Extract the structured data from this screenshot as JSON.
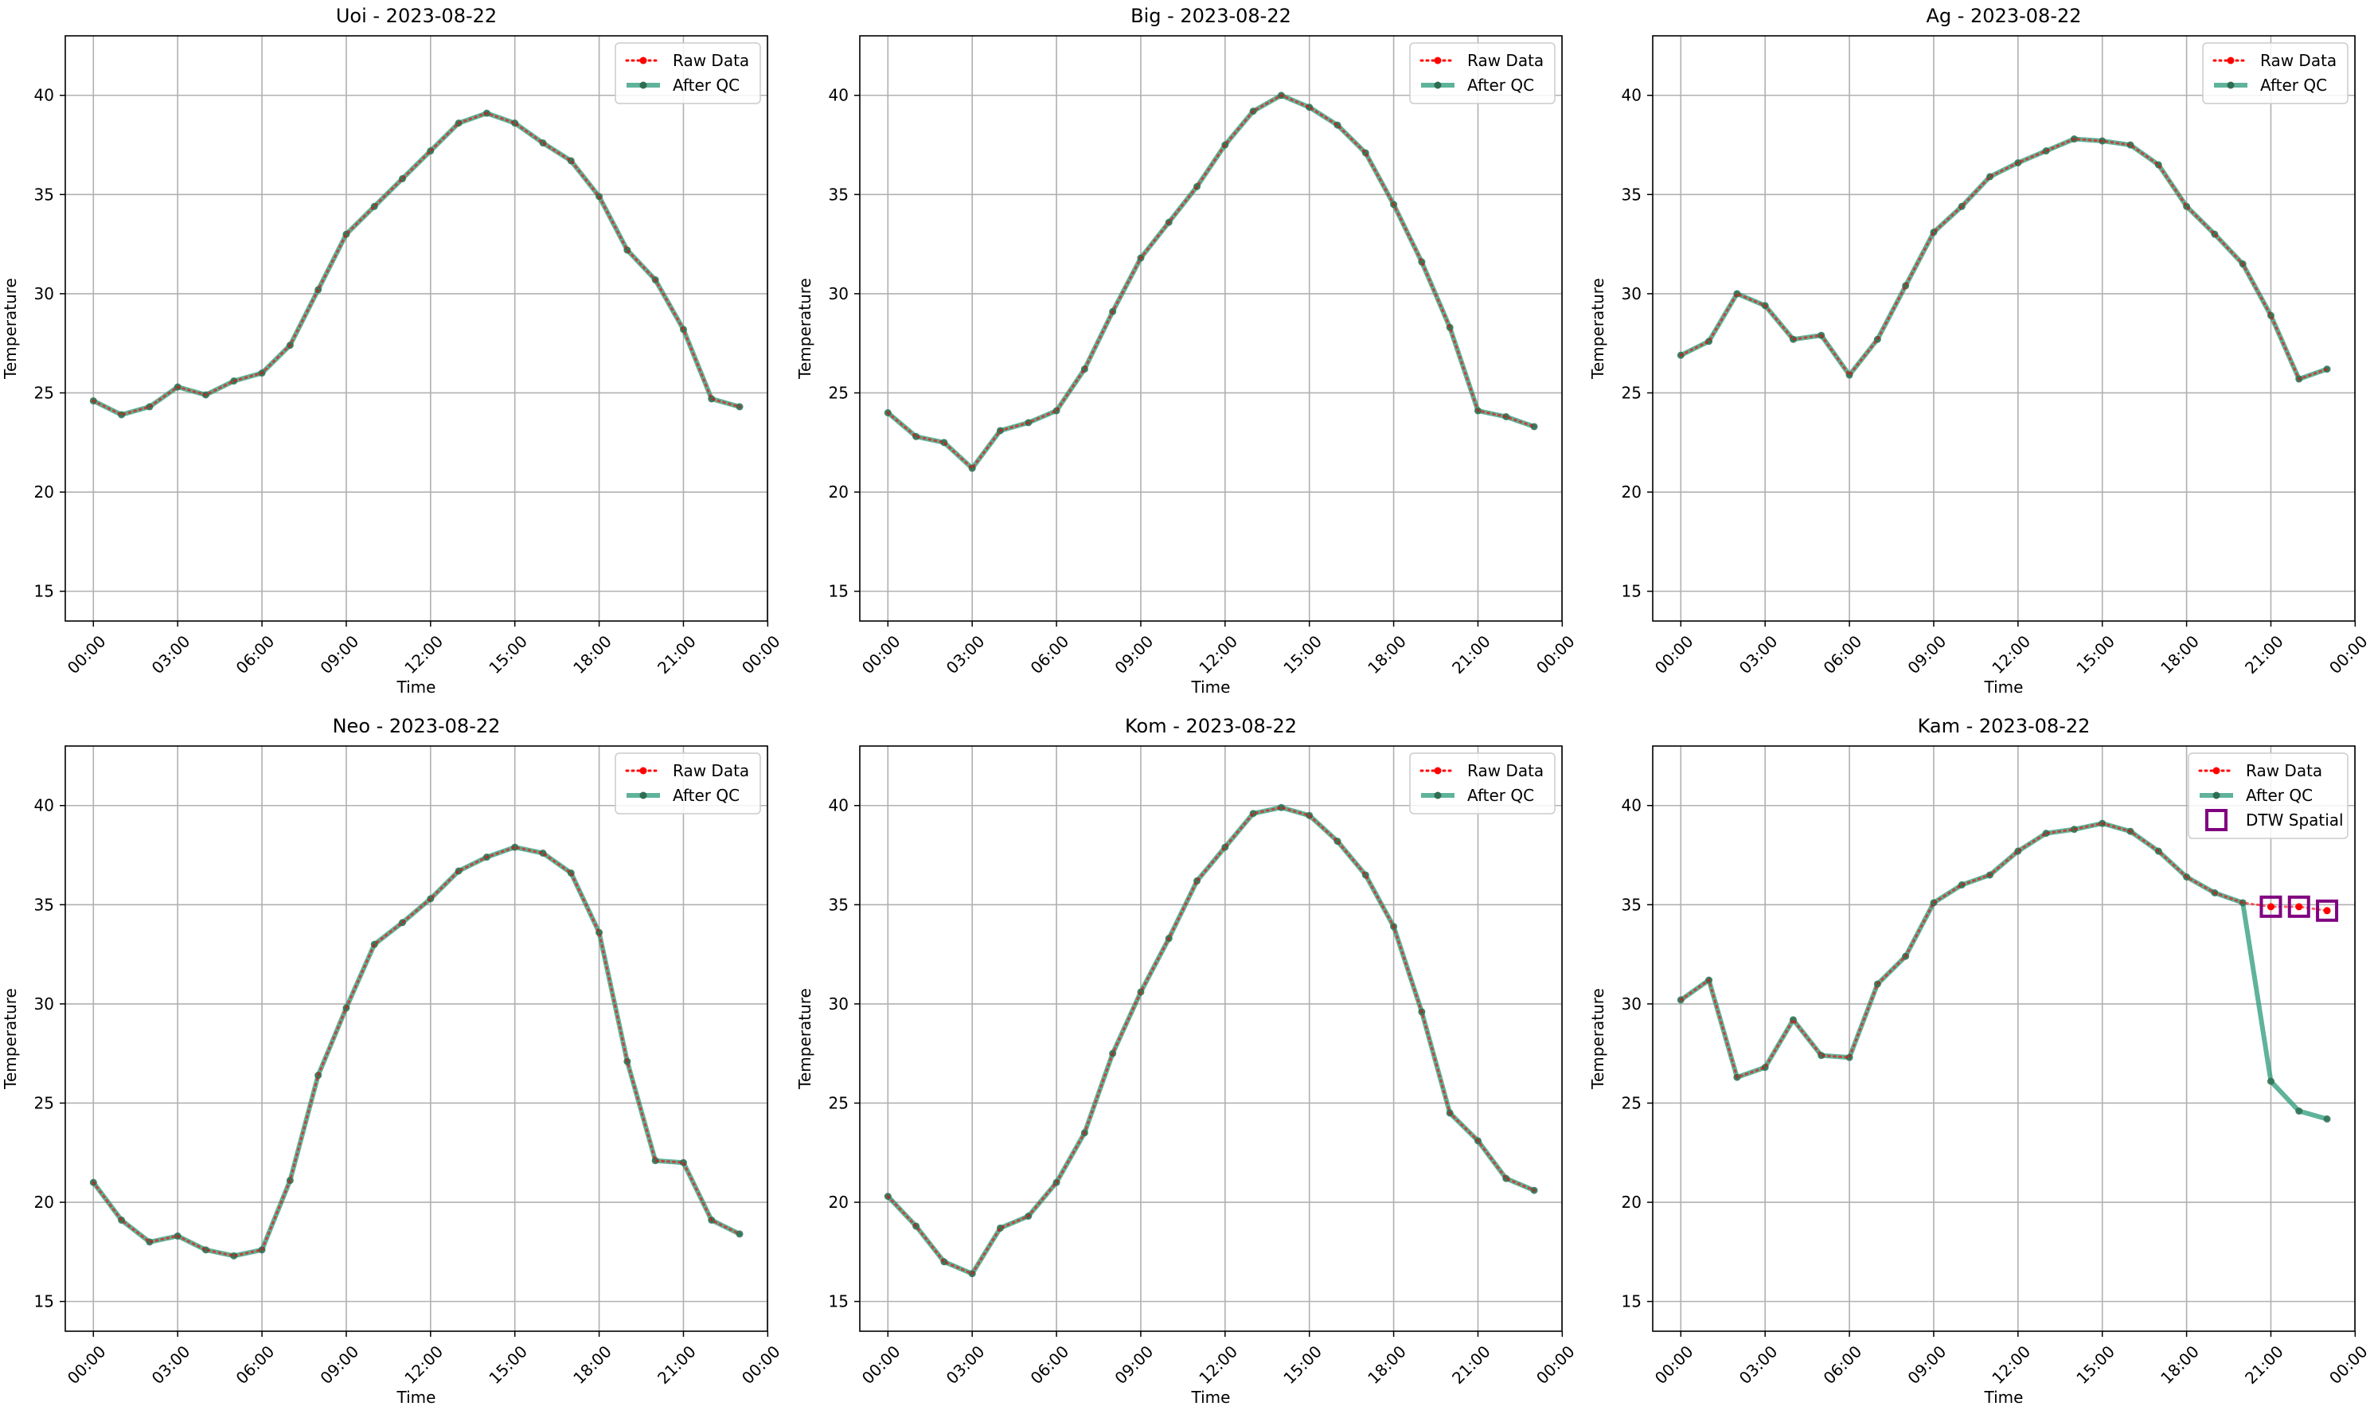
{
  "colors": {
    "raw": "#ff0000",
    "qc": "#2a9a78",
    "qc_marker": "#2f6e52",
    "flag": "#800080",
    "grid": "#b0b0b0",
    "axis": "#000000"
  },
  "chart_data": [
    {
      "type": "line",
      "title": "Uoi - 2023-08-22",
      "xlabel": "Time",
      "ylabel": "Temperature",
      "xlim": [
        -1,
        23.99
      ],
      "ylim": [
        13.5,
        43
      ],
      "x_ticks": [
        0,
        3,
        6,
        9,
        12,
        15,
        18,
        21,
        24
      ],
      "x_tick_labels": [
        "00:00",
        "03:00",
        "06:00",
        "09:00",
        "12:00",
        "15:00",
        "18:00",
        "21:00",
        "00:00"
      ],
      "y_ticks": [
        15,
        20,
        25,
        30,
        35,
        40
      ],
      "grid": true,
      "legend_position": "top-right",
      "legend": [
        "Raw Data",
        "After QC"
      ],
      "x": [
        0,
        1,
        2,
        3,
        4,
        5,
        6,
        7,
        8,
        9,
        10,
        11,
        12,
        13,
        14,
        15,
        16,
        17,
        18,
        19,
        20,
        21,
        22,
        23
      ],
      "series": [
        {
          "name": "Raw Data",
          "style": "dotted",
          "values": [
            24.6,
            23.9,
            24.3,
            25.3,
            24.9,
            25.6,
            26.0,
            27.4,
            30.2,
            33.0,
            34.4,
            35.8,
            37.2,
            38.6,
            39.1,
            38.6,
            37.6,
            36.7,
            34.9,
            32.2,
            30.7,
            28.2,
            24.7,
            24.3
          ]
        },
        {
          "name": "After QC",
          "style": "solid",
          "values": [
            24.6,
            23.9,
            24.3,
            25.3,
            24.9,
            25.6,
            26.0,
            27.4,
            30.2,
            33.0,
            34.4,
            35.8,
            37.2,
            38.6,
            39.1,
            38.6,
            37.6,
            36.7,
            34.9,
            32.2,
            30.7,
            28.2,
            24.7,
            24.3
          ]
        }
      ]
    },
    {
      "type": "line",
      "title": "Big - 2023-08-22",
      "xlabel": "Time",
      "ylabel": "Temperature",
      "xlim": [
        -1,
        23.99
      ],
      "ylim": [
        13.5,
        43
      ],
      "x_ticks": [
        0,
        3,
        6,
        9,
        12,
        15,
        18,
        21,
        24
      ],
      "x_tick_labels": [
        "00:00",
        "03:00",
        "06:00",
        "09:00",
        "12:00",
        "15:00",
        "18:00",
        "21:00",
        "00:00"
      ],
      "y_ticks": [
        15,
        20,
        25,
        30,
        35,
        40
      ],
      "grid": true,
      "legend_position": "top-right",
      "legend": [
        "Raw Data",
        "After QC"
      ],
      "x": [
        0,
        1,
        2,
        3,
        4,
        5,
        6,
        7,
        8,
        9,
        10,
        11,
        12,
        13,
        14,
        15,
        16,
        17,
        18,
        19,
        20,
        21,
        22,
        23
      ],
      "series": [
        {
          "name": "Raw Data",
          "style": "dotted",
          "values": [
            24.0,
            22.8,
            22.5,
            21.2,
            23.1,
            23.5,
            24.1,
            26.2,
            29.1,
            31.8,
            33.6,
            35.4,
            37.5,
            39.2,
            40.0,
            39.4,
            38.5,
            37.1,
            34.5,
            31.6,
            28.3,
            24.1,
            23.8,
            23.3
          ]
        },
        {
          "name": "After QC",
          "style": "solid",
          "values": [
            24.0,
            22.8,
            22.5,
            21.2,
            23.1,
            23.5,
            24.1,
            26.2,
            29.1,
            31.8,
            33.6,
            35.4,
            37.5,
            39.2,
            40.0,
            39.4,
            38.5,
            37.1,
            34.5,
            31.6,
            28.3,
            24.1,
            23.8,
            23.3
          ]
        }
      ]
    },
    {
      "type": "line",
      "title": "Ag - 2023-08-22",
      "xlabel": "Time",
      "ylabel": "Temperature",
      "xlim": [
        -1,
        23.99
      ],
      "ylim": [
        13.5,
        43
      ],
      "x_ticks": [
        0,
        3,
        6,
        9,
        12,
        15,
        18,
        21,
        24
      ],
      "x_tick_labels": [
        "00:00",
        "03:00",
        "06:00",
        "09:00",
        "12:00",
        "15:00",
        "18:00",
        "21:00",
        "00:00"
      ],
      "y_ticks": [
        15,
        20,
        25,
        30,
        35,
        40
      ],
      "grid": true,
      "legend_position": "top-right",
      "legend": [
        "Raw Data",
        "After QC"
      ],
      "x": [
        0,
        1,
        2,
        3,
        4,
        5,
        6,
        7,
        8,
        9,
        10,
        11,
        12,
        13,
        14,
        15,
        16,
        17,
        18,
        19,
        20,
        21,
        22,
        23
      ],
      "series": [
        {
          "name": "Raw Data",
          "style": "dotted",
          "values": [
            26.9,
            27.6,
            30.0,
            29.4,
            27.7,
            27.9,
            25.9,
            27.7,
            30.4,
            33.1,
            34.4,
            35.9,
            36.6,
            37.2,
            37.8,
            37.7,
            37.5,
            36.5,
            34.4,
            33.0,
            31.5,
            28.9,
            25.7,
            26.2
          ]
        },
        {
          "name": "After QC",
          "style": "solid",
          "values": [
            26.9,
            27.6,
            30.0,
            29.4,
            27.7,
            27.9,
            25.9,
            27.7,
            30.4,
            33.1,
            34.4,
            35.9,
            36.6,
            37.2,
            37.8,
            37.7,
            37.5,
            36.5,
            34.4,
            33.0,
            31.5,
            28.9,
            25.7,
            26.2
          ]
        }
      ]
    },
    {
      "type": "line",
      "title": "Neo - 2023-08-22",
      "xlabel": "Time",
      "ylabel": "Temperature",
      "xlim": [
        -1,
        23.99
      ],
      "ylim": [
        13.5,
        43
      ],
      "x_ticks": [
        0,
        3,
        6,
        9,
        12,
        15,
        18,
        21,
        24
      ],
      "x_tick_labels": [
        "00:00",
        "03:00",
        "06:00",
        "09:00",
        "12:00",
        "15:00",
        "18:00",
        "21:00",
        "00:00"
      ],
      "y_ticks": [
        15,
        20,
        25,
        30,
        35,
        40
      ],
      "grid": true,
      "legend_position": "top-right",
      "legend": [
        "Raw Data",
        "After QC"
      ],
      "x": [
        0,
        1,
        2,
        3,
        4,
        5,
        6,
        7,
        8,
        9,
        10,
        11,
        12,
        13,
        14,
        15,
        16,
        17,
        18,
        19,
        20,
        21,
        22,
        23
      ],
      "series": [
        {
          "name": "Raw Data",
          "style": "dotted",
          "values": [
            21.0,
            19.1,
            18.0,
            18.3,
            17.6,
            17.3,
            17.6,
            21.1,
            26.4,
            29.8,
            33.0,
            34.1,
            35.3,
            36.7,
            37.4,
            37.9,
            37.6,
            36.6,
            33.6,
            27.1,
            22.1,
            22.0,
            19.1,
            18.4
          ]
        },
        {
          "name": "After QC",
          "style": "solid",
          "values": [
            21.0,
            19.1,
            18.0,
            18.3,
            17.6,
            17.3,
            17.6,
            21.1,
            26.4,
            29.8,
            33.0,
            34.1,
            35.3,
            36.7,
            37.4,
            37.9,
            37.6,
            36.6,
            33.6,
            27.1,
            22.1,
            22.0,
            19.1,
            18.4
          ]
        }
      ]
    },
    {
      "type": "line",
      "title": "Kom - 2023-08-22",
      "xlabel": "Time",
      "ylabel": "Temperature",
      "xlim": [
        -1,
        23.99
      ],
      "ylim": [
        13.5,
        43
      ],
      "x_ticks": [
        0,
        3,
        6,
        9,
        12,
        15,
        18,
        21,
        24
      ],
      "x_tick_labels": [
        "00:00",
        "03:00",
        "06:00",
        "09:00",
        "12:00",
        "15:00",
        "18:00",
        "21:00",
        "00:00"
      ],
      "y_ticks": [
        15,
        20,
        25,
        30,
        35,
        40
      ],
      "grid": true,
      "legend_position": "top-right",
      "legend": [
        "Raw Data",
        "After QC"
      ],
      "x": [
        0,
        1,
        2,
        3,
        4,
        5,
        6,
        7,
        8,
        9,
        10,
        11,
        12,
        13,
        14,
        15,
        16,
        17,
        18,
        19,
        20,
        21,
        22,
        23
      ],
      "series": [
        {
          "name": "Raw Data",
          "style": "dotted",
          "values": [
            20.3,
            18.8,
            17.0,
            16.4,
            18.7,
            19.3,
            21.0,
            23.5,
            27.5,
            30.6,
            33.3,
            36.2,
            37.9,
            39.6,
            39.9,
            39.5,
            38.2,
            36.5,
            33.9,
            29.6,
            24.5,
            23.1,
            21.2,
            20.6
          ]
        },
        {
          "name": "After QC",
          "style": "solid",
          "values": [
            20.3,
            18.8,
            17.0,
            16.4,
            18.7,
            19.3,
            21.0,
            23.5,
            27.5,
            30.6,
            33.3,
            36.2,
            37.9,
            39.6,
            39.9,
            39.5,
            38.2,
            36.5,
            33.9,
            29.6,
            24.5,
            23.1,
            21.2,
            20.6
          ]
        }
      ]
    },
    {
      "type": "line",
      "title": "Kam - 2023-08-22",
      "xlabel": "Time",
      "ylabel": "Temperature",
      "xlim": [
        -1,
        23.99
      ],
      "ylim": [
        13.5,
        43
      ],
      "x_ticks": [
        0,
        3,
        6,
        9,
        12,
        15,
        18,
        21,
        24
      ],
      "x_tick_labels": [
        "00:00",
        "03:00",
        "06:00",
        "09:00",
        "12:00",
        "15:00",
        "18:00",
        "21:00",
        "00:00"
      ],
      "y_ticks": [
        15,
        20,
        25,
        30,
        35,
        40
      ],
      "grid": true,
      "legend_position": "top-right",
      "legend": [
        "Raw Data",
        "After QC",
        "DTW Spatial"
      ],
      "x": [
        0,
        1,
        2,
        3,
        4,
        5,
        6,
        7,
        8,
        9,
        10,
        11,
        12,
        13,
        14,
        15,
        16,
        17,
        18,
        19,
        20,
        21,
        22,
        23
      ],
      "series": [
        {
          "name": "Raw Data",
          "style": "dotted",
          "values": [
            30.2,
            31.2,
            26.3,
            26.8,
            29.2,
            27.4,
            27.3,
            31.0,
            32.4,
            35.1,
            36.0,
            36.5,
            37.7,
            38.6,
            38.8,
            39.1,
            38.7,
            37.7,
            36.4,
            35.6,
            35.1,
            34.9,
            34.9,
            34.7
          ]
        },
        {
          "name": "After QC",
          "style": "solid",
          "values": [
            30.2,
            31.2,
            26.3,
            26.8,
            29.2,
            27.4,
            27.3,
            31.0,
            32.4,
            35.1,
            36.0,
            36.5,
            37.7,
            38.6,
            38.8,
            39.1,
            38.7,
            37.7,
            36.4,
            35.6,
            35.1,
            26.1,
            24.6,
            24.2
          ]
        }
      ],
      "flags": {
        "name": "DTW Spatial",
        "x": [
          21,
          22,
          23
        ],
        "values": [
          34.9,
          34.9,
          34.7
        ]
      }
    }
  ]
}
